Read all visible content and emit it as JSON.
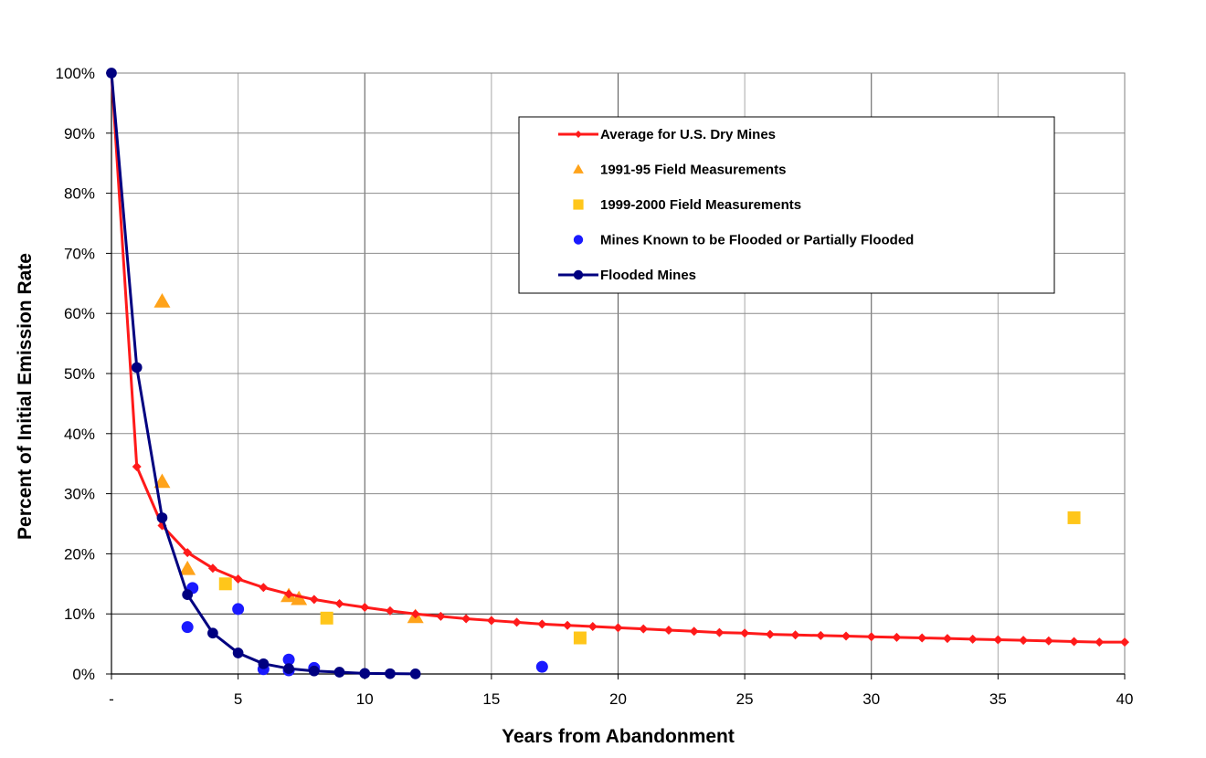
{
  "chart_data": {
    "type": "line",
    "xlabel": "Years from Abandonment",
    "ylabel": "Percent of Initial Emission Rate",
    "xlim": [
      0,
      40
    ],
    "ylim": [
      0,
      100
    ],
    "x_ticks": [
      {
        "value": 0,
        "label": "-"
      },
      {
        "value": 5,
        "label": "5"
      },
      {
        "value": 10,
        "label": "10"
      },
      {
        "value": 15,
        "label": "15"
      },
      {
        "value": 20,
        "label": "20"
      },
      {
        "value": 25,
        "label": "25"
      },
      {
        "value": 30,
        "label": "30"
      },
      {
        "value": 35,
        "label": "35"
      },
      {
        "value": 40,
        "label": "40"
      }
    ],
    "y_ticks": [
      {
        "value": 0,
        "label": "0%"
      },
      {
        "value": 10,
        "label": "10%"
      },
      {
        "value": 20,
        "label": "20%"
      },
      {
        "value": 30,
        "label": "30%"
      },
      {
        "value": 40,
        "label": "40%"
      },
      {
        "value": 50,
        "label": "50%"
      },
      {
        "value": 60,
        "label": "60%"
      },
      {
        "value": 70,
        "label": "70%"
      },
      {
        "value": 80,
        "label": "80%"
      },
      {
        "value": 90,
        "label": "90%"
      },
      {
        "value": 100,
        "label": "100%"
      }
    ],
    "grid": true,
    "legend_position": "top-right",
    "series": [
      {
        "name": "Average for U.S. Dry Mines",
        "kind": "line",
        "marker": "diamond",
        "color": "#ff1a1a",
        "points": [
          [
            0,
            100
          ],
          [
            1,
            34.5
          ],
          [
            2,
            24.7
          ],
          [
            3,
            20.2
          ],
          [
            4,
            17.6
          ],
          [
            5,
            15.8
          ],
          [
            6,
            14.4
          ],
          [
            7,
            13.3
          ],
          [
            8,
            12.4
          ],
          [
            9,
            11.7
          ],
          [
            10,
            11.1
          ],
          [
            11,
            10.5
          ],
          [
            12,
            10.0
          ],
          [
            13,
            9.6
          ],
          [
            14,
            9.2
          ],
          [
            15,
            8.9
          ],
          [
            16,
            8.6
          ],
          [
            17,
            8.3
          ],
          [
            18,
            8.1
          ],
          [
            19,
            7.9
          ],
          [
            20,
            7.7
          ],
          [
            21,
            7.5
          ],
          [
            22,
            7.3
          ],
          [
            23,
            7.1
          ],
          [
            24,
            6.9
          ],
          [
            25,
            6.8
          ],
          [
            26,
            6.6
          ],
          [
            27,
            6.5
          ],
          [
            28,
            6.4
          ],
          [
            29,
            6.3
          ],
          [
            30,
            6.2
          ],
          [
            31,
            6.1
          ],
          [
            32,
            6.0
          ],
          [
            33,
            5.9
          ],
          [
            34,
            5.8
          ],
          [
            35,
            5.7
          ],
          [
            36,
            5.6
          ],
          [
            37,
            5.5
          ],
          [
            38,
            5.4
          ],
          [
            39,
            5.3
          ],
          [
            40,
            5.3
          ]
        ]
      },
      {
        "name": "1991-95 Field Measurements",
        "kind": "scatter",
        "marker": "triangle",
        "color": "#ffa31a",
        "points": [
          [
            2,
            62
          ],
          [
            2,
            32
          ],
          [
            3,
            17.5
          ],
          [
            7,
            13
          ],
          [
            7.4,
            12.5
          ],
          [
            12,
            9.5
          ]
        ]
      },
      {
        "name": "1999-2000 Field Measurements",
        "kind": "scatter",
        "marker": "square",
        "color": "#ffc61a",
        "points": [
          [
            4.5,
            15
          ],
          [
            8.5,
            9.3
          ],
          [
            18.5,
            6
          ],
          [
            38,
            26
          ]
        ]
      },
      {
        "name": "Mines Known to be Flooded or Partially Flooded",
        "kind": "scatter",
        "marker": "circle",
        "color": "#1a1aff",
        "points": [
          [
            3,
            7.8
          ],
          [
            3.2,
            14.3
          ],
          [
            5,
            10.8
          ],
          [
            6,
            0.8
          ],
          [
            7,
            2.4
          ],
          [
            7,
            0.6
          ],
          [
            8,
            1.0
          ],
          [
            17,
            1.2
          ]
        ]
      },
      {
        "name": "Flooded Mines",
        "kind": "line",
        "marker": "circle",
        "color": "#000080",
        "points": [
          [
            0,
            100
          ],
          [
            1,
            51
          ],
          [
            2,
            26
          ],
          [
            3,
            13.2
          ],
          [
            4,
            6.8
          ],
          [
            5,
            3.5
          ],
          [
            6,
            1.7
          ],
          [
            7,
            0.9
          ],
          [
            8,
            0.5
          ],
          [
            9,
            0.3
          ],
          [
            10,
            0.1
          ],
          [
            11,
            0.05
          ],
          [
            12,
            0.02
          ]
        ]
      }
    ]
  }
}
